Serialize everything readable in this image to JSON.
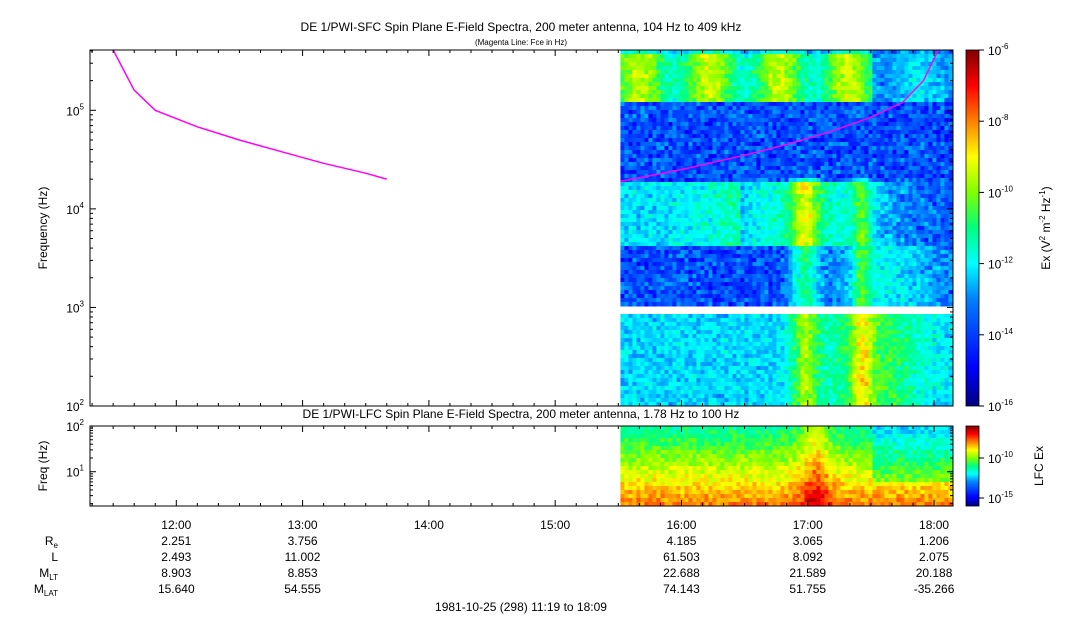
{
  "colors": {
    "fce_line": "#ff00ff",
    "background": "#ffffff",
    "colormap": [
      "#00007f",
      "#0000ff",
      "#0080ff",
      "#00ffff",
      "#00ff80",
      "#80ff00",
      "#ffff00",
      "#ff8000",
      "#ff0000",
      "#7f0000"
    ]
  },
  "chart_data": [
    {
      "type": "heatmap",
      "title": "DE 1/PWI-SFC  Spin Plane E-Field Spectra, 200 meter antenna, 104 Hz to 409 kHz",
      "subtitle": "(Magenta Line: Fce in Hz)",
      "ylabel": "Frequency (Hz)",
      "yscale": "log",
      "ylim": [
        100,
        409000
      ],
      "y_ticks": [
        {
          "value": 100,
          "base": "10",
          "exp": "2"
        },
        {
          "value": 1000,
          "base": "10",
          "exp": "3"
        },
        {
          "value": 10000,
          "base": "10",
          "exp": "4"
        },
        {
          "value": 100000,
          "base": "10",
          "exp": "5"
        }
      ],
      "xlim": [
        "11:19",
        "18:09"
      ],
      "data_start": "15:31",
      "colorbar": {
        "label_main": "Ex (V",
        "label_sup1": "2",
        "label_mid1": " m",
        "label_sup2": "-2",
        "label_mid2": " Hz",
        "label_sup3": "-1",
        "label_end": ")",
        "scale": "log",
        "range": [
          1e-16,
          1e-06
        ],
        "ticks": [
          {
            "value": 1e-06,
            "base": "10",
            "exp": "-6"
          },
          {
            "value": 1e-08,
            "base": "10",
            "exp": "-8"
          },
          {
            "value": 1e-10,
            "base": "10",
            "exp": "-10"
          },
          {
            "value": 1e-12,
            "base": "10",
            "exp": "-12"
          },
          {
            "value": 1e-14,
            "base": "10",
            "exp": "-14"
          },
          {
            "value": 1e-16,
            "base": "10",
            "exp": "-16"
          }
        ]
      },
      "fce_line": {
        "segments": [
          [
            [
              "11:30",
              409000
            ],
            [
              "11:40",
              160000
            ],
            [
              "11:50",
              100000
            ],
            [
              "12:10",
              68000
            ],
            [
              "12:30",
              50000
            ],
            [
              "12:50",
              38000
            ],
            [
              "13:10",
              29000
            ],
            [
              "13:30",
              23000
            ],
            [
              "13:40",
              20000
            ]
          ],
          [
            [
              "15:31",
              19000
            ],
            [
              "16:00",
              25000
            ],
            [
              "16:30",
              35000
            ],
            [
              "16:50",
              45000
            ],
            [
              "17:10",
              60000
            ],
            [
              "17:30",
              85000
            ],
            [
              "17:45",
              120000
            ],
            [
              "17:55",
              200000
            ],
            [
              "18:02",
              409000
            ]
          ]
        ]
      }
    },
    {
      "type": "heatmap",
      "title": "DE 1/PWI-LFC  Spin Plane E-Field Spectra, 200 meter antenna, 1.78 Hz to 100 Hz",
      "ylabel": "Freq (Hz)",
      "yscale": "log",
      "ylim": [
        1.78,
        100
      ],
      "y_ticks": [
        {
          "value": 10,
          "base": "10",
          "exp": "1"
        },
        {
          "value": 100,
          "base": "10",
          "exp": "2"
        }
      ],
      "xlim": [
        "11:19",
        "18:09"
      ],
      "data_start": "15:31",
      "colorbar": {
        "label": "LFC Ex",
        "scale": "log",
        "ticks": [
          {
            "value": 1e-10,
            "base": "10",
            "exp": "-10"
          },
          {
            "value": 1e-15,
            "base": "10",
            "exp": "-15"
          }
        ]
      }
    }
  ],
  "x_axis": {
    "ticks": [
      "12:00",
      "13:00",
      "14:00",
      "15:00",
      "16:00",
      "17:00",
      "18:00"
    ]
  },
  "ephemeris": {
    "labels": [
      {
        "main": "R",
        "sub": "e"
      },
      {
        "main": "L",
        "sub": ""
      },
      {
        "main": "M",
        "sub": "LT"
      },
      {
        "main": "M",
        "sub": "LAT"
      }
    ],
    "rows": [
      [
        "2.251",
        "3.756",
        "",
        "",
        "4.185",
        "3.065",
        "1.206"
      ],
      [
        "2.493",
        "11.002",
        "",
        "",
        "61.503",
        "8.092",
        "2.075"
      ],
      [
        "8.903",
        "8.853",
        "",
        "",
        "22.688",
        "21.589",
        "20.188"
      ],
      [
        "15.640",
        "54.555",
        "",
        "",
        "74.143",
        "51.755",
        "-35.266"
      ]
    ]
  },
  "footer": "1981-10-25 (298) 11:19 to 18:09"
}
